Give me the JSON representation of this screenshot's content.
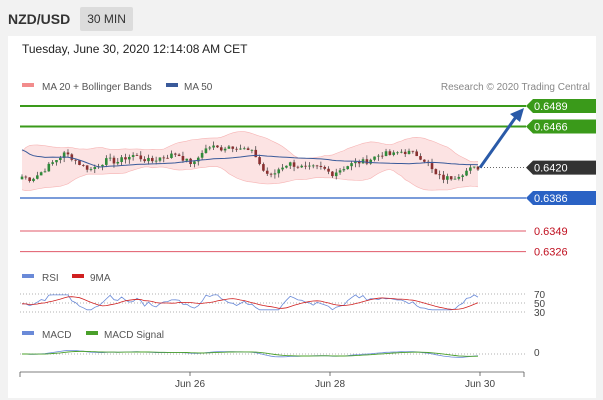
{
  "header": {
    "pair": "NZD/USD",
    "timeframe": "30 MIN"
  },
  "timestamp": "Tuesday, June 30, 2020 12:14:08 AM CET",
  "legend_main": {
    "ma20": "MA 20 + Bollinger Bands",
    "ma50": "MA 50",
    "credit": "Research © 2020 Trading Central"
  },
  "legend_rsi": {
    "rsi": "RSI",
    "ma9": "9MA"
  },
  "legend_macd": {
    "macd": "MACD",
    "signal": "MACD Signal"
  },
  "colors": {
    "resistance": "#3a9a1a",
    "support_blue": "#2a62c4",
    "support_red": "#e05a6a",
    "current": "#333333",
    "ma20_band": "#f28c8c",
    "ma50": "#3a5a9a",
    "rsi": "#6a8ad8",
    "ma9": "#d02020",
    "macd": "#6a8ad8",
    "macd_signal": "#4aa02a"
  },
  "chart_data": [
    {
      "type": "candlestick",
      "title": "NZD/USD 30 MIN",
      "x_ticks": [
        "Jun 26",
        "Jun 28",
        "Jun 30"
      ],
      "current_price": {
        "value": 0.642,
        "label": "0.6420"
      },
      "levels": [
        {
          "value": 0.6489,
          "label": "0.6489",
          "kind": "resistance"
        },
        {
          "value": 0.6466,
          "label": "0.6466",
          "kind": "resistance"
        },
        {
          "value": 0.6386,
          "label": "0.6386",
          "kind": "support"
        },
        {
          "value": 0.6349,
          "label": "0.6349",
          "kind": "support"
        },
        {
          "value": 0.6326,
          "label": "0.6326",
          "kind": "support"
        }
      ],
      "projection": {
        "from": 0.642,
        "to": 0.6489,
        "direction": "up"
      },
      "price_path": [
        0.641,
        0.6407,
        0.6413,
        0.6421,
        0.6429,
        0.6436,
        0.643,
        0.6422,
        0.6418,
        0.6424,
        0.6429,
        0.6426,
        0.6431,
        0.6434,
        0.643,
        0.6427,
        0.6431,
        0.6433,
        0.6436,
        0.6428,
        0.6424,
        0.6439,
        0.6444,
        0.6441,
        0.6444,
        0.6443,
        0.644,
        0.6436,
        0.6417,
        0.641,
        0.642,
        0.6425,
        0.6422,
        0.6419,
        0.642,
        0.6419,
        0.6413,
        0.6418,
        0.6423,
        0.6426,
        0.6427,
        0.6432,
        0.6436,
        0.6434,
        0.6438,
        0.6437,
        0.6434,
        0.6427,
        0.6412,
        0.6408,
        0.6409,
        0.6413,
        0.6418,
        0.642
      ]
    },
    {
      "type": "line",
      "title": "RSI",
      "levels": [
        70,
        50,
        30
      ]
    },
    {
      "type": "line",
      "title": "MACD",
      "levels": [
        0
      ]
    }
  ]
}
